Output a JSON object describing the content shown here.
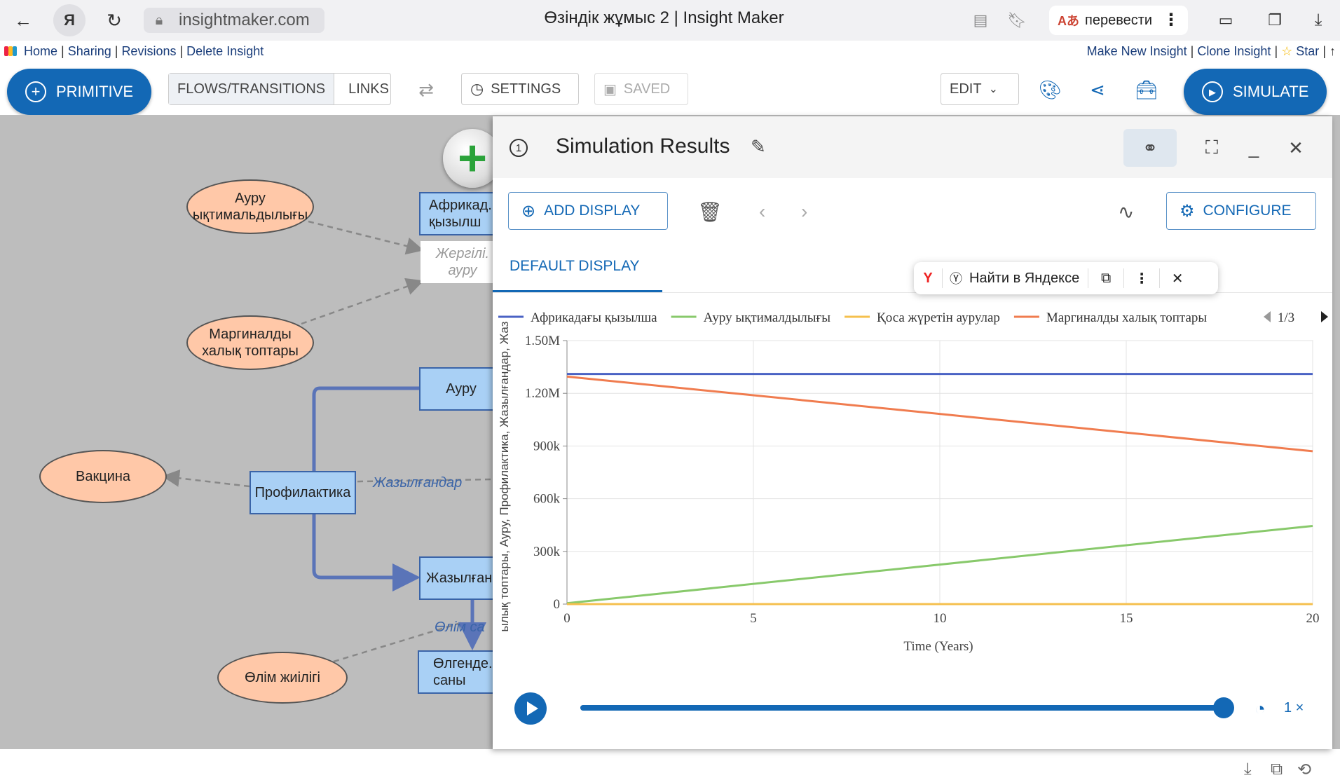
{
  "browser": {
    "url": "insightmaker.com",
    "tab_title": "Өзіндік жұмыс 2 | Insight Maker",
    "translate_label": "перевести",
    "yandex_letter": "Я"
  },
  "nav": {
    "left": [
      "Home",
      "Sharing",
      "Revisions",
      "Delete Insight"
    ],
    "right": [
      "Make New Insight",
      "Clone Insight",
      "Star"
    ],
    "right_tail": "| ↑"
  },
  "toolbar": {
    "primitive": "PRIMITIVE",
    "flows": "FLOWS/TRANSITIONS",
    "links": "LINKS",
    "settings": "SETTINGS",
    "saved": "SAVED",
    "edit": "EDIT",
    "simulate": "SIMULATE"
  },
  "diagram": {
    "nodes": {
      "aurui_yktim": "Ауру ықтимальдылығы",
      "marginaldy": "Маргиналды халық топтары",
      "vakcina": "Вакцина",
      "olim_zhiiligi": "Өлім жиілігі",
      "afrika": "Африкад. қызылш",
      "zhergilikti": "Жергілі. ауру",
      "auru": "Ауру",
      "profilaktika": "Профилактика",
      "zhazylgan": "Жазылған",
      "olgender": "Өлгенде. саны"
    },
    "flows": {
      "zhazylgandar": "Жазылғандар",
      "olim_san": "Өлім са"
    }
  },
  "results": {
    "number": "1",
    "title": "Simulation Results",
    "add_display": "ADD DISPLAY",
    "configure": "CONFIGURE",
    "tab": "DEFAULT DISPLAY",
    "speed": "1 ×"
  },
  "yandex_popup": {
    "search": "Найти в Яндексе"
  },
  "chart_data": {
    "type": "line",
    "title": "",
    "xlabel": "Time (Years)",
    "ylabel": "ылық топтары, Ауру, Профилактика, Жазылғандар, Жаз",
    "xlim": [
      0,
      20
    ],
    "ylim": [
      0,
      1500000
    ],
    "x_ticks": [
      0,
      5,
      10,
      15,
      20
    ],
    "y_ticks": [
      0,
      300000,
      600000,
      900000,
      1200000,
      1500000
    ],
    "y_tick_labels": [
      "0",
      "300k",
      "600k",
      "900k",
      "1.20M",
      "1.50M"
    ],
    "legend_page": "1/3",
    "legend_placement": "top",
    "x": [
      0,
      20
    ],
    "series": [
      {
        "name": "Африкадағы қызылша",
        "color": "#4a62c4",
        "values": [
          1310000,
          1310000
        ]
      },
      {
        "name": "Ауру ықтималдылығы",
        "color": "#88c96b",
        "values": [
          5000,
          445000
        ]
      },
      {
        "name": "Қоса жүретін аурулар",
        "color": "#f5c04e",
        "values": [
          0,
          0
        ]
      },
      {
        "name": "Маргиналды халық топтары",
        "color": "#f07c4f",
        "values": [
          1295000,
          870000
        ]
      }
    ],
    "progress": 1.0
  }
}
